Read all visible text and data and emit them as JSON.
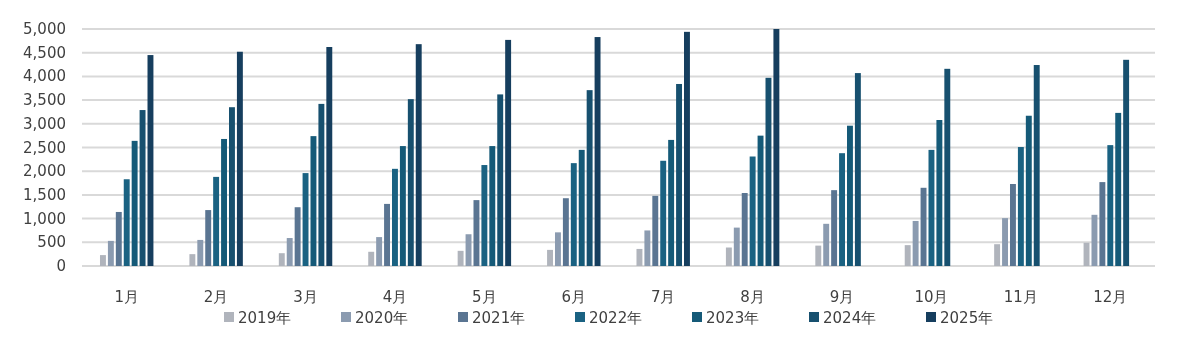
{
  "chart_data": {
    "type": "bar",
    "categories": [
      "1月",
      "2月",
      "3月",
      "4月",
      "5月",
      "6月",
      "7月",
      "8月",
      "9月",
      "10月",
      "11月",
      "12月"
    ],
    "series": [
      {
        "name": "2019年",
        "color": "#b0b4bc",
        "values": [
          230,
          250,
          270,
          300,
          320,
          340,
          360,
          390,
          430,
          440,
          460,
          490
        ]
      },
      {
        "name": "2020年",
        "color": "#8b9bb0",
        "values": [
          530,
          550,
          590,
          610,
          670,
          710,
          750,
          810,
          890,
          950,
          1010,
          1080
        ]
      },
      {
        "name": "2021年",
        "color": "#5a7592",
        "values": [
          1140,
          1180,
          1240,
          1310,
          1390,
          1430,
          1480,
          1540,
          1600,
          1650,
          1730,
          1770
        ]
      },
      {
        "name": "2022年",
        "color": "#1a6282",
        "values": [
          1830,
          1880,
          1960,
          2050,
          2130,
          2170,
          2220,
          2310,
          2380,
          2450,
          2510,
          2550
        ]
      },
      {
        "name": "2023年",
        "color": "#155a78",
        "values": [
          2640,
          2680,
          2740,
          2530,
          2530,
          2450,
          2660,
          2750,
          2960,
          3080,
          3170,
          3230
        ]
      },
      {
        "name": "2024年",
        "color": "#17506f",
        "values": [
          3290,
          3350,
          3420,
          3520,
          3620,
          3710,
          3840,
          3970,
          4070,
          4160,
          4240,
          4350
        ]
      },
      {
        "name": "2025年",
        "color": "#163e5e",
        "values": [
          4450,
          4520,
          4620,
          4680,
          4770,
          4830,
          4940,
          5000,
          null,
          null,
          null,
          null
        ]
      }
    ],
    "ylim": [
      0,
      5000
    ],
    "yticks": [
      {
        "value": 0,
        "label": "0"
      },
      {
        "value": 500,
        "label": "500"
      },
      {
        "value": 1000,
        "label": "1,000"
      },
      {
        "value": 1500,
        "label": "1,500"
      },
      {
        "value": 2000,
        "label": "2,000"
      },
      {
        "value": 2500,
        "label": "2,500"
      },
      {
        "value": 3000,
        "label": "3,000"
      },
      {
        "value": 3500,
        "label": "3,500"
      },
      {
        "value": 4000,
        "label": "4,000"
      },
      {
        "value": 4500,
        "label": "4,500"
      },
      {
        "value": 5000,
        "label": "5,000"
      }
    ],
    "grid": "y",
    "legend": "bottom"
  }
}
